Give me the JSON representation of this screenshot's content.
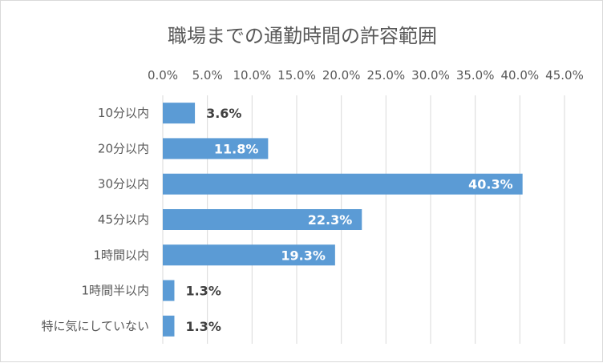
{
  "chart_data": {
    "type": "bar",
    "orientation": "horizontal",
    "title": "職場までの通勤時間の許容範囲",
    "categories": [
      "10分以内",
      "20分以内",
      "30分以内",
      "45分以内",
      "1時間以内",
      "1時間半以内",
      "特に気にしていない"
    ],
    "values": [
      3.6,
      11.8,
      40.3,
      22.3,
      19.3,
      1.3,
      1.3
    ],
    "data_labels": [
      "3.6%",
      "11.8%",
      "40.3%",
      "22.3%",
      "19.3%",
      "1.3%",
      "1.3%"
    ],
    "xlim": [
      0,
      45
    ],
    "x_ticks": [
      "0.0%",
      "5.0%",
      "10.0%",
      "15.0%",
      "20.0%",
      "25.0%",
      "30.0%",
      "35.0%",
      "40.0%",
      "45.0%"
    ],
    "x_axis_position": "top",
    "grid": true,
    "colors": {
      "bar": "#5B9BD5",
      "grid": "#d9d9d9",
      "label_inside": "#ffffff",
      "label_outside": "#404040"
    }
  }
}
